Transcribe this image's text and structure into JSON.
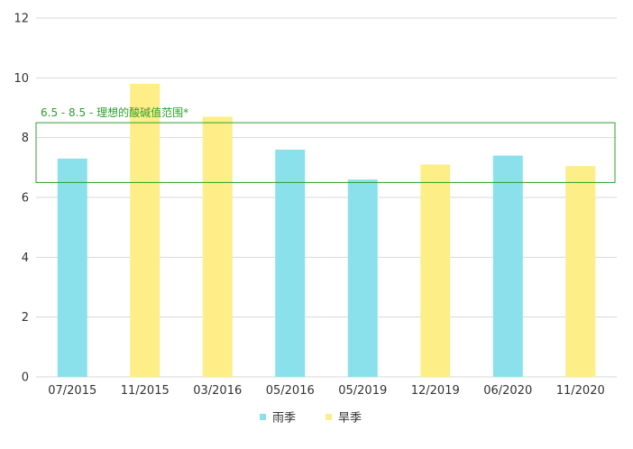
{
  "chart_data": {
    "type": "bar",
    "categories": [
      "07/2015",
      "11/2015",
      "03/2016",
      "05/2016",
      "05/2019",
      "12/2019",
      "06/2020",
      "11/2020"
    ],
    "values": [
      7.3,
      9.8,
      8.7,
      7.6,
      6.6,
      7.1,
      7.4,
      7.05
    ],
    "season": [
      "雨季",
      "旱季",
      "旱季",
      "雨季",
      "雨季",
      "旱季",
      "雨季",
      "旱季"
    ],
    "legend": [
      {
        "name": "雨季",
        "color": "#8ae1ec"
      },
      {
        "name": "旱季",
        "color": "#fdee88"
      }
    ],
    "ylim": [
      0,
      12
    ],
    "yticks": [
      "0",
      "2",
      "4",
      "6",
      "8",
      "10",
      "12"
    ],
    "grid": true,
    "legend_position": "bottom",
    "band": {
      "low": 6.5,
      "high": 8.5,
      "label": "6.5 - 8.5 - 理想的酸碱值范围*",
      "color": "#2ca02c"
    }
  }
}
